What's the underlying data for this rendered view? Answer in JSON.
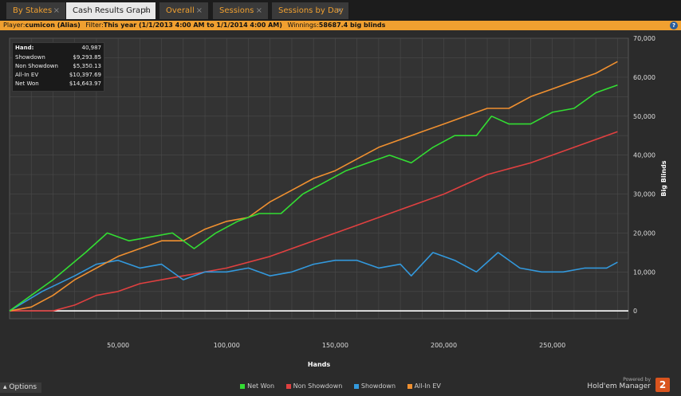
{
  "tabs": [
    {
      "label": "By Stakes",
      "close": "×"
    },
    {
      "label": "Cash Results Graph",
      "close": "×"
    },
    {
      "label": "Overall",
      "close": "×"
    },
    {
      "label": "Sessions",
      "close": "×"
    },
    {
      "label": "Sessions by Day",
      "close": "×"
    }
  ],
  "infobar": {
    "player_label": "Player:",
    "player_value": "cumicon (Alias)",
    "filter_label": "Filter:",
    "filter_value": "This year (1/1/2013 4:00 AM to 1/1/2014 4:00 AM)",
    "winnings_label": "Winnings:",
    "winnings_value": "58687.4 big blinds"
  },
  "help_icon": "?",
  "stats": [
    {
      "label": "Hand:",
      "value": "40,987"
    },
    {
      "label": "Showdown",
      "value": "$9,293.85"
    },
    {
      "label": "Non Showdown",
      "value": "$5,350.13"
    },
    {
      "label": "All-In EV",
      "value": "$10,397.69"
    },
    {
      "label": "Net Won",
      "value": "$14,643.97"
    }
  ],
  "options_label": "Options",
  "brand": {
    "powered": "Powered by",
    "name": "Hold'em Manager",
    "logo": "2",
    "logo_color": "#d9541e"
  },
  "chart_data": {
    "type": "line",
    "xlabel": "Hands",
    "ylabel": "Big Blinds",
    "xlim": [
      0,
      285000
    ],
    "ylim": [
      -2000,
      70000
    ],
    "xticks": [
      50000,
      100000,
      150000,
      200000,
      250000
    ],
    "xtick_labels": [
      "50,000",
      "100,000",
      "150,000",
      "200,000",
      "250,000"
    ],
    "yticks": [
      0,
      10000,
      20000,
      30000,
      40000,
      50000,
      60000,
      70000
    ],
    "ytick_labels": [
      "0",
      "10,000",
      "20,000",
      "30,000",
      "40,000",
      "50,000",
      "60,000",
      "70,000"
    ],
    "grid": true,
    "legend_position": "bottom",
    "series": [
      {
        "name": "Net Won",
        "color": "#33dd33",
        "x": [
          0,
          10000,
          20000,
          35000,
          45000,
          55000,
          65000,
          75000,
          85000,
          95000,
          105000,
          115000,
          125000,
          135000,
          145000,
          155000,
          165000,
          175000,
          185000,
          195000,
          205000,
          215000,
          222000,
          230000,
          240000,
          250000,
          260000,
          270000,
          280000
        ],
        "y": [
          0,
          4000,
          8000,
          15000,
          20000,
          18000,
          19000,
          20000,
          16000,
          20000,
          23000,
          25000,
          25000,
          30000,
          33000,
          36000,
          38000,
          40000,
          38000,
          42000,
          45000,
          45000,
          50000,
          48000,
          48000,
          51000,
          52000,
          56000,
          58000
        ]
      },
      {
        "name": "Non Showdown",
        "color": "#e04040",
        "x": [
          0,
          10000,
          20000,
          30000,
          40000,
          50000,
          60000,
          80000,
          100000,
          120000,
          140000,
          160000,
          180000,
          200000,
          220000,
          240000,
          260000,
          280000
        ],
        "y": [
          0,
          0,
          0,
          1500,
          4000,
          5000,
          7000,
          9000,
          11000,
          14000,
          18000,
          22000,
          26000,
          30000,
          35000,
          38000,
          42000,
          46000
        ]
      },
      {
        "name": "Showdown",
        "color": "#3399dd",
        "x": [
          0,
          15000,
          30000,
          40000,
          50000,
          60000,
          70000,
          80000,
          90000,
          100000,
          110000,
          120000,
          130000,
          140000,
          150000,
          160000,
          170000,
          180000,
          185000,
          195000,
          205000,
          215000,
          225000,
          235000,
          245000,
          255000,
          265000,
          275000,
          280000
        ],
        "y": [
          0,
          5000,
          9000,
          12000,
          13000,
          11000,
          12000,
          8000,
          10000,
          10000,
          11000,
          9000,
          10000,
          12000,
          13000,
          13000,
          11000,
          12000,
          9000,
          15000,
          13000,
          10000,
          15000,
          11000,
          10000,
          10000,
          11000,
          11000,
          12500
        ]
      },
      {
        "name": "All-In EV",
        "color": "#f09030",
        "x": [
          0,
          10000,
          20000,
          30000,
          40000,
          50000,
          60000,
          70000,
          80000,
          90000,
          100000,
          110000,
          120000,
          130000,
          140000,
          150000,
          160000,
          170000,
          180000,
          190000,
          200000,
          210000,
          220000,
          230000,
          240000,
          250000,
          260000,
          270000,
          280000
        ],
        "y": [
          0,
          1000,
          4000,
          8000,
          11000,
          14000,
          16000,
          18000,
          18000,
          21000,
          23000,
          24000,
          28000,
          31000,
          34000,
          36000,
          39000,
          42000,
          44000,
          46000,
          48000,
          50000,
          52000,
          52000,
          55000,
          57000,
          59000,
          61000,
          64000
        ]
      }
    ]
  }
}
